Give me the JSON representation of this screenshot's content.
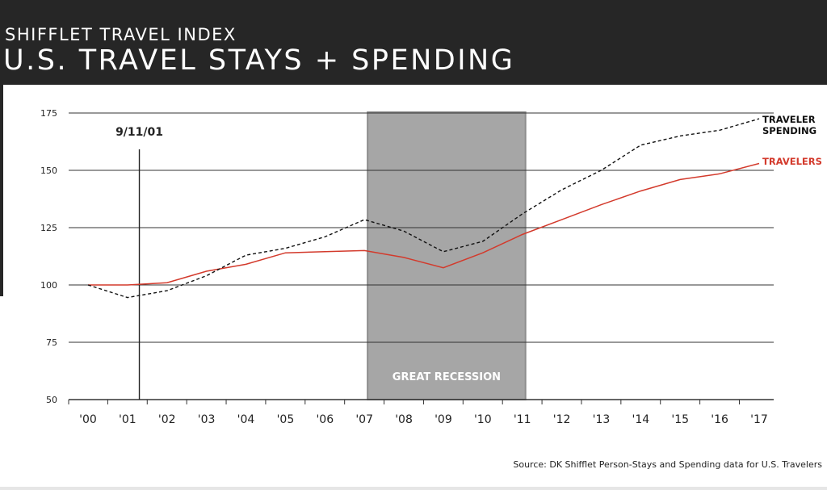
{
  "header": {
    "subtitle": "SHIFFLET TRAVEL INDEX",
    "title": "U.S. TRAVEL STAYS + SPENDING"
  },
  "source": "Source: DK Shifflet Person-Stays and Spending data for U.S. Travelers",
  "colors": {
    "header_bg": "#262626",
    "travelers_line": "#d33a2c",
    "spending_line": "#111111",
    "recession_fill": "#a6a6a6",
    "recession_border": "#8c8c8c",
    "grid": "#333333"
  },
  "chart_data": {
    "type": "line",
    "title": "",
    "xlabel": "",
    "ylabel": "",
    "categories": [
      "'00",
      "'01",
      "'02",
      "'03",
      "'04",
      "'05",
      "'06",
      "'07",
      "'08",
      "'09",
      "'10",
      "'11",
      "'12",
      "'13",
      "'14",
      "'15",
      "'16",
      "'17"
    ],
    "ylim": [
      50,
      175
    ],
    "yticks": [
      50,
      75,
      100,
      125,
      150,
      175
    ],
    "grid": true,
    "series": [
      {
        "name": "TRAVELERS",
        "style": "solid",
        "values": [
          100,
          100,
          101,
          106,
          109,
          114,
          114.5,
          115,
          112,
          107.5,
          114,
          122,
          128.5,
          135,
          141,
          146,
          148.5,
          153
        ]
      },
      {
        "name": "TRAVELER SPENDING",
        "style": "dashed",
        "values": [
          100,
          94.5,
          97.5,
          104,
          113,
          116,
          121,
          128.5,
          123.5,
          114.5,
          119,
          131,
          141.5,
          150,
          161,
          165,
          167.5,
          172.5
        ]
      }
    ],
    "annotations": [
      {
        "label": "9/11/01",
        "type": "vline",
        "x": "'01",
        "x_offset": 0.3
      },
      {
        "label": "GREAT RECESSION",
        "type": "band",
        "from": "'07",
        "to": "'11"
      }
    ]
  }
}
